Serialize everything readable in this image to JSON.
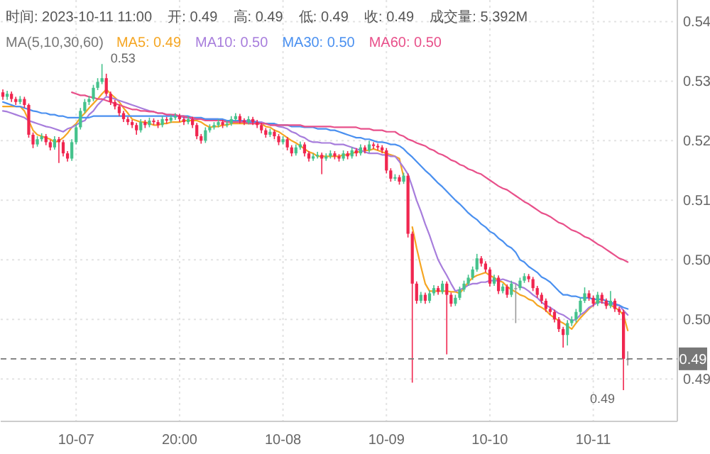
{
  "chart_data": {
    "type": "candlestick",
    "title": "时间: 2023-10-11 11:00    开: 0.49    高: 0.49    低: 0.49    收: 0.49    成交量: 5.392M",
    "subtitle": "MA(5,10,30,60)",
    "categories": [
      null,
      null,
      null,
      null,
      null,
      null,
      null,
      null,
      null,
      null,
      null,
      null,
      null,
      null,
      null,
      null,
      null,
      "10-07",
      null,
      null,
      null,
      null,
      null,
      null,
      null,
      null,
      null,
      null,
      null,
      null,
      null,
      null,
      null,
      null,
      null,
      null,
      null,
      null,
      null,
      null,
      null,
      "20:00",
      null,
      null,
      null,
      null,
      null,
      null,
      null,
      null,
      null,
      null,
      null,
      null,
      null,
      null,
      null,
      null,
      null,
      null,
      null,
      null,
      null,
      null,
      null,
      "10-08",
      null,
      null,
      null,
      null,
      null,
      null,
      null,
      null,
      null,
      null,
      null,
      null,
      null,
      null,
      null,
      null,
      null,
      null,
      null,
      null,
      null,
      null,
      null,
      "10-09",
      null,
      null,
      null,
      null,
      null,
      null,
      null,
      null,
      null,
      null,
      null,
      null,
      null,
      null,
      null,
      null,
      null,
      null,
      null,
      null,
      null,
      null,
      null,
      "10-10",
      null,
      null,
      null,
      null,
      null,
      null,
      null,
      null,
      null,
      null,
      null,
      null,
      null,
      null,
      null,
      null,
      null,
      null,
      null,
      null,
      null,
      null,
      null,
      "10-11",
      null,
      null,
      null,
      null,
      null,
      null,
      null,
      null,
      null,
      null,
      null,
      null,
      null,
      null,
      null,
      null,
      null,
      null,
      null
    ],
    "ylim": [
      0.4823,
      0.5389
    ],
    "yticks": [
      {
        "value": 0.536,
        "label": "0.54"
      },
      {
        "value": 0.528,
        "label": "0.53"
      },
      {
        "value": 0.52,
        "label": "0.52"
      },
      {
        "value": 0.512,
        "label": "0.51"
      },
      {
        "value": 0.504,
        "label": "0.50"
      },
      {
        "value": 0.496,
        "label": "0.50"
      },
      {
        "value": 0.488,
        "label": "0.49"
      }
    ],
    "grid": true,
    "legend": "top",
    "line_style": "solid",
    "ref_lines": [
      {
        "axis": "y",
        "value": 0.4907,
        "label": "0.49",
        "color": "#777777",
        "line_style": "dashed"
      }
    ],
    "annotations": [
      "0.53",
      "0.49"
    ],
    "series": [
      {
        "ohlc": [
          [
            0.5265,
            0.5269,
            0.5255,
            0.5259
          ],
          [
            0.5259,
            0.5267,
            0.5255,
            0.5263
          ],
          [
            0.5263,
            0.5266,
            0.5252,
            0.5256
          ],
          [
            0.5256,
            0.5259,
            0.5248,
            0.5252
          ],
          [
            0.5252,
            0.526,
            0.5249,
            0.5256
          ],
          [
            0.5256,
            0.5259,
            0.5244,
            0.5248
          ],
          [
            0.5248,
            0.525,
            0.5204,
            0.5208
          ],
          [
            0.5208,
            0.5211,
            0.519,
            0.5195
          ],
          [
            0.5195,
            0.5206,
            0.5192,
            0.5202
          ],
          [
            0.5202,
            0.521,
            0.5199,
            0.5206
          ],
          [
            0.5206,
            0.5209,
            0.5194,
            0.5198
          ],
          [
            0.5198,
            0.5201,
            0.5187,
            0.5191
          ],
          [
            0.5191,
            0.5206,
            0.5188,
            0.5202
          ],
          [
            0.5202,
            0.5205,
            0.517,
            0.5198
          ],
          [
            0.5198,
            0.5201,
            0.5179,
            0.5183
          ],
          [
            0.5183,
            0.5186,
            0.5172,
            0.5176
          ],
          [
            0.5176,
            0.5202,
            0.5173,
            0.5198
          ],
          [
            0.5198,
            0.5222,
            0.5195,
            0.5218
          ],
          [
            0.5218,
            0.5244,
            0.5215,
            0.524
          ],
          [
            0.524,
            0.5256,
            0.5237,
            0.5252
          ],
          [
            0.5252,
            0.526,
            0.5248,
            0.5256
          ],
          [
            0.5256,
            0.5275,
            0.5253,
            0.5271
          ],
          [
            0.5271,
            0.5284,
            0.5268,
            0.5279
          ],
          [
            0.5279,
            0.5303,
            0.5276,
            0.5284
          ],
          [
            0.5284,
            0.529,
            0.526,
            0.5263
          ],
          [
            0.5263,
            0.5266,
            0.5248,
            0.5252
          ],
          [
            0.5252,
            0.5255,
            0.5242,
            0.5246
          ],
          [
            0.5246,
            0.5249,
            0.5233,
            0.5237
          ],
          [
            0.5237,
            0.524,
            0.5225,
            0.5229
          ],
          [
            0.5229,
            0.5232,
            0.5221,
            0.5225
          ],
          [
            0.5225,
            0.5228,
            0.5217,
            0.5221
          ],
          [
            0.5221,
            0.5224,
            0.5208,
            0.5214
          ],
          [
            0.5214,
            0.5229,
            0.5211,
            0.5225
          ],
          [
            0.5225,
            0.5228,
            0.5217,
            0.5221
          ],
          [
            0.5221,
            0.5231,
            0.5218,
            0.5227
          ],
          [
            0.5227,
            0.523,
            0.5221,
            0.5225
          ],
          [
            0.5225,
            0.5228,
            0.5217,
            0.5221
          ],
          [
            0.5221,
            0.5233,
            0.5218,
            0.5229
          ],
          [
            0.5229,
            0.5232,
            0.5223,
            0.5227
          ],
          [
            0.5227,
            0.5235,
            0.5224,
            0.5231
          ],
          [
            0.5231,
            0.5237,
            0.5228,
            0.5233
          ],
          [
            0.5233,
            0.5236,
            0.5225,
            0.5229
          ],
          [
            0.5229,
            0.5232,
            0.5221,
            0.5225
          ],
          [
            0.5225,
            0.5233,
            0.5222,
            0.5229
          ],
          [
            0.5229,
            0.5232,
            0.5217,
            0.5221
          ],
          [
            0.5221,
            0.5224,
            0.5202,
            0.5206
          ],
          [
            0.5206,
            0.5209,
            0.5196,
            0.52
          ],
          [
            0.52,
            0.5218,
            0.5197,
            0.5214
          ],
          [
            0.5214,
            0.5222,
            0.5211,
            0.5218
          ],
          [
            0.5218,
            0.5225,
            0.5215,
            0.5221
          ],
          [
            0.5221,
            0.5229,
            0.5218,
            0.5225
          ],
          [
            0.5225,
            0.5228,
            0.5217,
            0.5221
          ],
          [
            0.5221,
            0.5227,
            0.5218,
            0.5223
          ],
          [
            0.5223,
            0.5233,
            0.522,
            0.5229
          ],
          [
            0.5229,
            0.5237,
            0.5226,
            0.5233
          ],
          [
            0.5233,
            0.5236,
            0.5223,
            0.5227
          ],
          [
            0.5227,
            0.523,
            0.5221,
            0.5225
          ],
          [
            0.5225,
            0.5233,
            0.5222,
            0.5229
          ],
          [
            0.5229,
            0.5232,
            0.5221,
            0.5225
          ],
          [
            0.5225,
            0.5228,
            0.5217,
            0.5221
          ],
          [
            0.5221,
            0.5224,
            0.521,
            0.5214
          ],
          [
            0.5214,
            0.5217,
            0.5204,
            0.5208
          ],
          [
            0.5208,
            0.5216,
            0.5205,
            0.5212
          ],
          [
            0.5212,
            0.5215,
            0.5202,
            0.5206
          ],
          [
            0.5206,
            0.5209,
            0.5194,
            0.5198
          ],
          [
            0.5198,
            0.5206,
            0.5195,
            0.5202
          ],
          [
            0.5202,
            0.5205,
            0.5187,
            0.5191
          ],
          [
            0.5191,
            0.5194,
            0.5179,
            0.5183
          ],
          [
            0.5183,
            0.5195,
            0.518,
            0.5191
          ],
          [
            0.5191,
            0.5199,
            0.5188,
            0.5195
          ],
          [
            0.5195,
            0.5198,
            0.5179,
            0.5183
          ],
          [
            0.5183,
            0.5186,
            0.5172,
            0.5176
          ],
          [
            0.5176,
            0.5183,
            0.5173,
            0.5179
          ],
          [
            0.5179,
            0.5185,
            0.5176,
            0.5181
          ],
          [
            0.5181,
            0.5184,
            0.5155,
            0.5176
          ],
          [
            0.5176,
            0.5183,
            0.5173,
            0.5179
          ],
          [
            0.5179,
            0.5187,
            0.5176,
            0.5183
          ],
          [
            0.5183,
            0.5186,
            0.5175,
            0.5179
          ],
          [
            0.5179,
            0.5182,
            0.5172,
            0.5176
          ],
          [
            0.5176,
            0.5187,
            0.5173,
            0.5183
          ],
          [
            0.5183,
            0.5186,
            0.5175,
            0.5179
          ],
          [
            0.5179,
            0.5191,
            0.5176,
            0.5187
          ],
          [
            0.5187,
            0.519,
            0.5179,
            0.5183
          ],
          [
            0.5183,
            0.5195,
            0.518,
            0.5191
          ],
          [
            0.5191,
            0.5194,
            0.5183,
            0.5187
          ],
          [
            0.5187,
            0.52,
            0.5184,
            0.5195
          ],
          [
            0.5195,
            0.5198,
            0.5189,
            0.5193
          ],
          [
            0.5193,
            0.5196,
            0.5187,
            0.5191
          ],
          [
            0.5191,
            0.5194,
            0.5183,
            0.5187
          ],
          [
            0.5187,
            0.519,
            0.5156,
            0.516
          ],
          [
            0.516,
            0.5163,
            0.5145,
            0.5149
          ],
          [
            0.5149,
            0.5155,
            0.5146,
            0.5151
          ],
          [
            0.5151,
            0.5154,
            0.5141,
            0.5145
          ],
          [
            0.5145,
            0.5157,
            0.5142,
            0.5153
          ],
          [
            0.5153,
            0.5156,
            0.507,
            0.5075
          ],
          [
            0.5075,
            0.5078,
            0.4875,
            0.5008
          ],
          [
            0.5008,
            0.5011,
            0.4981,
            0.4985
          ],
          [
            0.4985,
            0.4997,
            0.4982,
            0.4993
          ],
          [
            0.4993,
            0.4996,
            0.4981,
            0.4985
          ],
          [
            0.4985,
            0.4999,
            0.4982,
            0.4995
          ],
          [
            0.4995,
            0.5006,
            0.4992,
            0.5002
          ],
          [
            0.5002,
            0.5005,
            0.4993,
            0.4997
          ],
          [
            0.4997,
            0.5012,
            0.4994,
            0.5008
          ],
          [
            0.5008,
            0.5011,
            0.4913,
            0.4993
          ],
          [
            0.4993,
            0.4996,
            0.4977,
            0.4981
          ],
          [
            0.4981,
            0.4993,
            0.4978,
            0.4989
          ],
          [
            0.4989,
            0.5004,
            0.4986,
            0.5
          ],
          [
            0.5,
            0.5012,
            0.4997,
            0.5008
          ],
          [
            0.5008,
            0.502,
            0.5005,
            0.5016
          ],
          [
            0.5016,
            0.5031,
            0.5013,
            0.5027
          ],
          [
            0.5027,
            0.5048,
            0.5024,
            0.5042
          ],
          [
            0.5042,
            0.5045,
            0.5031,
            0.5035
          ],
          [
            0.5035,
            0.5038,
            0.5023,
            0.5027
          ],
          [
            0.5027,
            0.503,
            0.5004,
            0.5008
          ],
          [
            0.5008,
            0.502,
            0.5005,
            0.5016
          ],
          [
            0.5016,
            0.5019,
            0.4994,
            0.4998
          ],
          [
            0.4998,
            0.5008,
            0.4995,
            0.5004
          ],
          [
            0.5004,
            0.5007,
            0.4989,
            0.4993
          ],
          [
            0.4993,
            0.5012,
            0.499,
            0.5008
          ],
          [
            0.5002,
            0.5008,
            0.4955,
            0.5002
          ],
          [
            0.5002,
            0.5016,
            0.4999,
            0.5012
          ],
          [
            0.5012,
            0.5022,
            0.5009,
            0.5018
          ],
          [
            0.5018,
            0.5021,
            0.501,
            0.5014
          ],
          [
            0.5014,
            0.5017,
            0.4998,
            0.5002
          ],
          [
            0.5002,
            0.5005,
            0.4989,
            0.4993
          ],
          [
            0.4993,
            0.4996,
            0.4981,
            0.4985
          ],
          [
            0.4985,
            0.4988,
            0.497,
            0.4974
          ],
          [
            0.4974,
            0.4977,
            0.4966,
            0.497
          ],
          [
            0.497,
            0.4973,
            0.4956,
            0.496
          ],
          [
            0.496,
            0.4963,
            0.4943,
            0.4947
          ],
          [
            0.4947,
            0.495,
            0.4922,
            0.4939
          ],
          [
            0.4939,
            0.4959,
            0.4925,
            0.4955
          ],
          [
            0.4955,
            0.4964,
            0.4951,
            0.496
          ],
          [
            0.496,
            0.4974,
            0.4956,
            0.497
          ],
          [
            0.497,
            0.4989,
            0.4966,
            0.4985
          ],
          [
            0.4985,
            0.5003,
            0.4982,
            0.4995
          ],
          [
            0.4995,
            0.4999,
            0.4985,
            0.4989
          ],
          [
            0.4989,
            0.4992,
            0.4977,
            0.4981
          ],
          [
            0.4981,
            0.4997,
            0.4978,
            0.4993
          ],
          [
            0.4993,
            0.4996,
            0.4981,
            0.4985
          ],
          [
            0.4985,
            0.4988,
            0.4974,
            0.4978
          ],
          [
            0.4978,
            0.4998,
            0.4975,
            0.4985
          ],
          [
            0.4985,
            0.4988,
            0.497,
            0.4974
          ],
          [
            0.4974,
            0.4977,
            0.4966,
            0.497
          ],
          [
            0.497,
            0.4973,
            0.4865,
            0.4907
          ],
          [
            0.4907,
            0.4917,
            0.4898,
            0.4907
          ],
          null,
          null,
          null,
          null,
          null,
          null,
          null,
          null,
          null,
          null,
          null
        ],
        "colors": [
          "#f0264f",
          "#45c28c",
          "#f0264f",
          "#f0264f",
          "#45c28c",
          "#f0264f",
          "#f0264f",
          "#f0264f",
          "#45c28c",
          "#45c28c",
          "#f0264f",
          "#f0264f",
          "#45c28c",
          "#f0264f",
          "#f0264f",
          "#f0264f",
          "#45c28c",
          "#45c28c",
          "#45c28c",
          "#45c28c",
          "#45c28c",
          "#45c28c",
          "#45c28c",
          "#45c28c",
          "#f0264f",
          "#f0264f",
          "#f0264f",
          "#f0264f",
          "#f0264f",
          "#f0264f",
          "#f0264f",
          "#f0264f",
          "#45c28c",
          "#f0264f",
          "#45c28c",
          "#f0264f",
          "#f0264f",
          "#45c28c",
          "#f0264f",
          "#45c28c",
          "#45c28c",
          "#f0264f",
          "#f0264f",
          "#45c28c",
          "#f0264f",
          "#f0264f",
          "#f0264f",
          "#45c28c",
          "#45c28c",
          "#45c28c",
          "#45c28c",
          "#f0264f",
          "#45c28c",
          "#45c28c",
          "#45c28c",
          "#f0264f",
          "#f0264f",
          "#45c28c",
          "#f0264f",
          "#f0264f",
          "#f0264f",
          "#f0264f",
          "#45c28c",
          "#f0264f",
          "#f0264f",
          "#45c28c",
          "#f0264f",
          "#f0264f",
          "#45c28c",
          "#45c28c",
          "#f0264f",
          "#f0264f",
          "#45c28c",
          "#45c28c",
          "#f0264f",
          "#45c28c",
          "#45c28c",
          "#f0264f",
          "#f0264f",
          "#45c28c",
          "#f0264f",
          "#45c28c",
          "#f0264f",
          "#45c28c",
          "#f0264f",
          "#45c28c",
          "#f0264f",
          "#f0264f",
          "#f0264f",
          "#f0264f",
          "#f0264f",
          "#45c28c",
          "#f0264f",
          "#45c28c",
          "#f0264f",
          "#f0264f",
          "#f0264f",
          "#45c28c",
          "#f0264f",
          "#45c28c",
          "#45c28c",
          "#f0264f",
          "#45c28c",
          "#f0264f",
          "#f0264f",
          "#45c28c",
          "#45c28c",
          "#45c28c",
          "#45c28c",
          "#45c28c",
          "#45c28c",
          "#f0264f",
          "#f0264f",
          "#f0264f",
          "#45c28c",
          "#f0264f",
          "#45c28c",
          "#f0264f",
          "#45c28c",
          "#999999",
          "#45c28c",
          "#45c28c",
          "#f0264f",
          "#f0264f",
          "#f0264f",
          "#f0264f",
          "#f0264f",
          "#f0264f",
          "#f0264f",
          "#f0264f",
          "#f0264f",
          "#45c28c",
          "#45c28c",
          "#45c28c",
          "#45c28c",
          "#45c28c",
          "#f0264f",
          "#f0264f",
          "#45c28c",
          "#f0264f",
          "#f0264f",
          "#45c28c",
          "#f0264f",
          "#f0264f",
          "#f0264f",
          "#999999",
          null,
          null,
          null,
          null,
          null,
          null,
          null,
          null,
          null,
          null,
          null
        ]
      },
      {
        "type": "line",
        "name": "MA5: 0.49",
        "color": "#f5a623",
        "values": [
          0.5246,
          0.5246,
          0.5246,
          0.5246,
          0.5246,
          0.524,
          0.5227,
          0.5214,
          0.5208,
          0.5206,
          0.5204,
          0.5202,
          0.5198,
          0.52,
          0.5204,
          0.521,
          0.5218,
          0.5223,
          0.5231,
          0.5237,
          0.5244,
          0.525,
          0.5256,
          0.5263,
          0.5269,
          0.5263,
          0.5258,
          0.5252,
          0.5244,
          0.5237,
          0.5229,
          0.5227,
          0.5225,
          0.5225,
          0.5223,
          0.5221,
          0.5221,
          0.5223,
          0.5223,
          0.5225,
          0.5225,
          0.5225,
          0.5227,
          0.5227,
          0.5227,
          0.5227,
          0.5225,
          0.5221,
          0.5218,
          0.5219,
          0.5219,
          0.5221,
          0.5221,
          0.5223,
          0.5223,
          0.5223,
          0.5223,
          0.5223,
          0.5223,
          0.5223,
          0.5223,
          0.5219,
          0.5218,
          0.5214,
          0.5212,
          0.5208,
          0.5204,
          0.52,
          0.5197,
          0.5193,
          0.5189,
          0.5185,
          0.5183,
          0.5179,
          0.5179,
          0.5179,
          0.5179,
          0.5179,
          0.5179,
          0.5181,
          0.5181,
          0.5183,
          0.5185,
          0.5185,
          0.5187,
          0.5187,
          0.5189,
          0.5187,
          0.5185,
          0.5183,
          0.5181,
          0.5179,
          0.5176,
          0.5151,
          null,
          0.5084,
          0.5056,
          0.5031,
          0.5008,
          0.4998,
          0.4998,
          0.4998,
          0.4998,
          0.4998,
          0.4997,
          0.4997,
          0.4995,
          0.5002,
          0.501,
          0.5016,
          0.5019,
          0.5021,
          0.5023,
          0.5019,
          0.5016,
          0.5012,
          0.501,
          0.5004,
          0.5,
          0.4997,
          0.4993,
          0.4991,
          0.4987,
          0.4985,
          0.4979,
          0.4976,
          0.4972,
          0.4966,
          0.4962,
          0.4958,
          0.4955,
          0.4951,
          0.4947,
          0.4955,
          0.4962,
          0.4968,
          0.4974,
          0.4979,
          0.4985,
          0.4983,
          0.4981,
          0.4979,
          0.4976,
          0.4972,
          0.4966,
          0.4945,
          null,
          null,
          null,
          null,
          null,
          null,
          null,
          null,
          null,
          null,
          null
        ]
      },
      {
        "type": "line",
        "name": "MA10: 0.50",
        "color": "#a77ddc",
        "values": [
          0.524,
          0.5239,
          0.5237,
          0.5235,
          0.5233,
          0.5231,
          0.5227,
          0.5225,
          0.5223,
          0.5221,
          0.5219,
          0.5218,
          0.5216,
          0.5214,
          0.5212,
          0.5216,
          0.5218,
          0.5221,
          0.5225,
          0.5227,
          0.5235,
          0.524,
          0.5248,
          0.5254,
          0.5259,
          0.5258,
          0.5256,
          0.5254,
          0.5252,
          0.525,
          0.5248,
          0.5246,
          0.5244,
          0.5242,
          0.524,
          0.5239,
          0.5237,
          0.5237,
          0.5235,
          0.5235,
          0.5233,
          0.5233,
          0.5231,
          0.5231,
          0.5229,
          0.5229,
          0.5229,
          0.5229,
          0.5229,
          0.5229,
          0.5229,
          0.5227,
          0.5227,
          0.5227,
          0.5227,
          0.5227,
          0.5227,
          0.5227,
          0.5227,
          0.5225,
          0.5225,
          0.5223,
          0.5221,
          0.5221,
          0.5219,
          0.5218,
          0.5216,
          0.5212,
          0.521,
          0.5206,
          0.5204,
          0.52,
          0.5198,
          0.5198,
          0.5197,
          0.5197,
          0.5197,
          0.5195,
          0.5195,
          0.5195,
          0.5193,
          0.5191,
          0.5189,
          0.5187,
          0.5185,
          0.5183,
          0.5183,
          0.5183,
          0.5181,
          0.5181,
          0.5179,
          0.5179,
          0.5172,
          0.5164,
          0.5155,
          0.5138,
          0.512,
          0.5105,
          0.5088,
          0.5073,
          0.5056,
          0.504,
          0.5029,
          0.5019,
          0.5008,
          0.4998,
          0.5,
          0.5002,
          0.5006,
          0.5008,
          0.5008,
          0.501,
          0.501,
          0.5012,
          0.5012,
          0.5012,
          0.5014,
          0.5012,
          0.501,
          0.5008,
          0.5004,
          0.5002,
          0.4998,
          0.4993,
          0.4989,
          0.4983,
          0.4979,
          0.4976,
          0.4972,
          0.4968,
          0.4966,
          0.4962,
          0.4958,
          0.496,
          0.4966,
          0.497,
          0.4976,
          0.4979,
          0.4983,
          0.4983,
          0.4981,
          0.4981,
          0.4979,
          0.4979,
          0.4972,
          0.4966,
          null,
          null,
          null,
          null,
          null,
          null,
          null,
          null,
          null,
          null,
          null
        ]
      },
      {
        "type": "line",
        "name": "MA30: 0.50",
        "color": "#4a90f0",
        "values": [
          0.5252,
          0.525,
          0.5248,
          0.5246,
          0.5246,
          0.5244,
          0.5242,
          0.524,
          0.5239,
          0.5237,
          0.5237,
          0.5235,
          0.5235,
          0.5233,
          0.5233,
          0.5231,
          0.5231,
          0.5231,
          0.5231,
          0.5231,
          0.5231,
          0.5233,
          0.5233,
          0.5233,
          0.5233,
          0.5233,
          0.5233,
          0.5233,
          0.5233,
          0.5233,
          0.5233,
          0.5233,
          0.5233,
          0.5233,
          0.5233,
          0.5233,
          0.5233,
          0.5233,
          0.5233,
          0.5233,
          0.5233,
          0.5233,
          0.5233,
          0.5233,
          0.5231,
          0.5231,
          0.5231,
          0.5229,
          0.5229,
          0.5229,
          0.5229,
          0.5229,
          0.5227,
          0.5227,
          0.5227,
          0.5227,
          0.5225,
          0.5225,
          0.5225,
          0.5225,
          0.5223,
          0.5223,
          0.5223,
          0.5223,
          0.5221,
          0.5221,
          0.5221,
          0.5219,
          0.5219,
          0.5219,
          0.5218,
          0.5218,
          0.5218,
          0.5216,
          0.5216,
          0.5216,
          0.5214,
          0.5214,
          0.5212,
          0.521,
          0.5208,
          0.5206,
          0.5204,
          0.5204,
          0.5202,
          0.5202,
          0.52,
          0.5198,
          0.5198,
          0.5197,
          0.5195,
          0.5195,
          0.5193,
          0.5189,
          0.5183,
          0.5178,
          0.5172,
          0.5166,
          0.516,
          0.5155,
          0.5149,
          0.5143,
          0.5138,
          0.5132,
          0.5126,
          0.512,
          0.5115,
          0.5109,
          0.5103,
          0.5098,
          0.5094,
          0.5088,
          0.5084,
          0.5078,
          0.5075,
          0.5069,
          0.5065,
          0.5059,
          0.5056,
          0.505,
          0.504,
          0.5037,
          0.5031,
          0.5027,
          0.5023,
          0.5017,
          0.5014,
          0.501,
          0.5004,
          0.4998,
          0.4993,
          0.4993,
          0.4991,
          0.4991,
          0.4989,
          0.4989,
          0.4989,
          0.4987,
          0.4987,
          0.4987,
          0.4985,
          0.4983,
          0.4981,
          0.4979,
          0.4976,
          0.4974,
          null,
          null,
          null,
          null,
          null,
          null,
          null,
          null,
          null,
          null,
          null
        ]
      },
      {
        "type": "line",
        "name": "MA60: 0.50",
        "color": "#e8508a",
        "values": [
          null,
          null,
          null,
          null,
          null,
          null,
          null,
          null,
          null,
          null,
          null,
          null,
          null,
          null,
          null,
          null,
          0.5265,
          0.5263,
          0.5261,
          0.5261,
          0.5259,
          0.5258,
          0.5256,
          0.5256,
          0.5254,
          0.5252,
          0.525,
          0.5248,
          0.5246,
          0.5244,
          0.5242,
          0.5242,
          0.524,
          0.524,
          0.5239,
          0.5239,
          0.5237,
          0.5237,
          0.5235,
          0.5235,
          0.5235,
          0.5233,
          0.5233,
          0.5231,
          0.5231,
          0.5229,
          0.5229,
          0.5227,
          0.5227,
          0.5227,
          0.5227,
          0.5227,
          0.5225,
          0.5225,
          0.5225,
          0.5225,
          0.5225,
          0.5223,
          0.5223,
          0.5223,
          0.5223,
          0.5223,
          0.5221,
          0.5221,
          0.5221,
          0.5221,
          0.5221,
          0.5221,
          0.5221,
          0.5221,
          0.5219,
          0.5219,
          0.5219,
          0.5219,
          0.5219,
          0.5219,
          0.5219,
          0.5218,
          0.5218,
          0.5218,
          0.5218,
          0.5218,
          0.5218,
          0.5216,
          0.5216,
          0.5216,
          0.5214,
          0.5214,
          0.5214,
          0.5212,
          0.5212,
          0.5212,
          0.5208,
          0.5206,
          0.5202,
          0.52,
          0.5197,
          0.5195,
          0.5193,
          0.5189,
          0.5187,
          0.5183,
          0.5181,
          0.5178,
          0.5174,
          0.5172,
          0.5168,
          0.5166,
          0.5162,
          0.516,
          0.5157,
          0.5155,
          0.5151,
          0.5147,
          0.5143,
          0.5139,
          0.5136,
          0.5134,
          0.513,
          0.5126,
          0.5122,
          0.5118,
          0.5115,
          0.5111,
          0.5107,
          0.5103,
          0.5101,
          0.5098,
          0.5094,
          0.509,
          0.5088,
          0.5084,
          0.508,
          0.5078,
          0.5075,
          0.5071,
          0.5069,
          0.5065,
          0.5061,
          0.5058,
          0.5054,
          0.505,
          0.5046,
          0.5042,
          0.504,
          0.5037,
          null,
          null,
          null,
          null,
          null,
          null,
          null,
          null,
          null,
          null,
          null
        ]
      }
    ]
  }
}
